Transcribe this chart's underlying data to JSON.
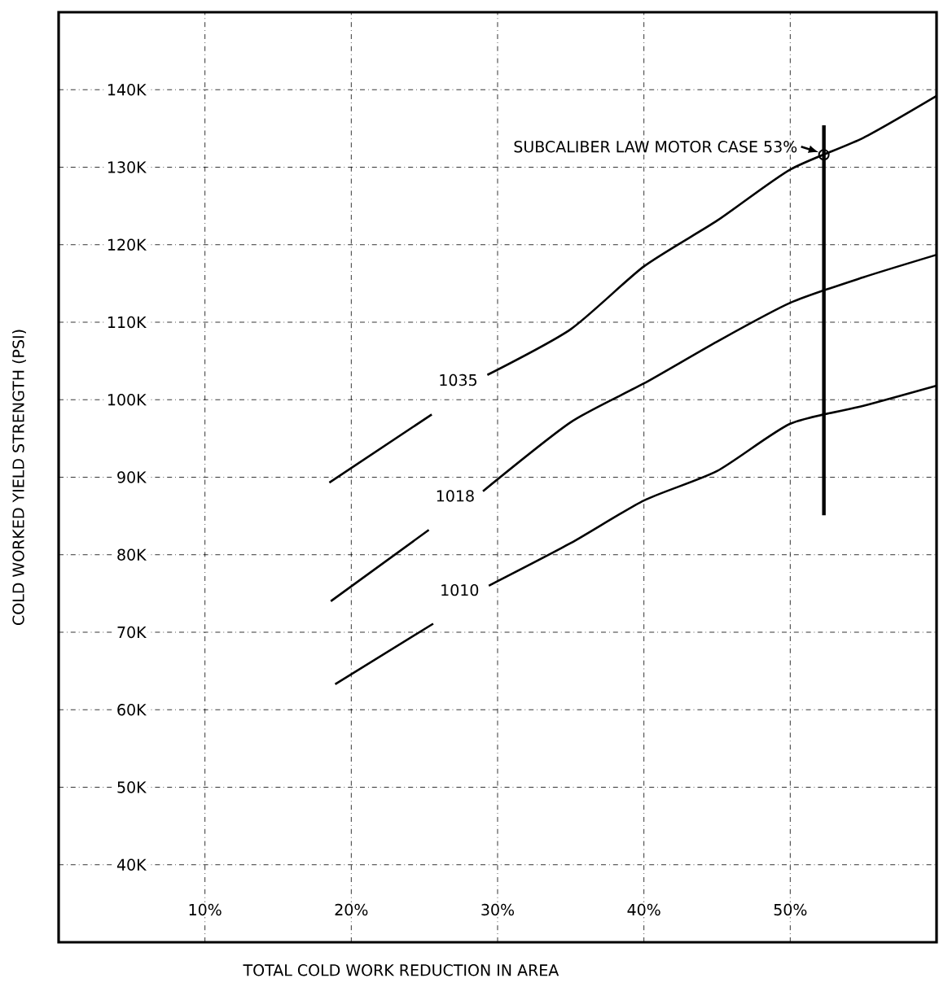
{
  "chart_data": {
    "type": "line",
    "xlabel": "TOTAL COLD WORK REDUCTION IN AREA",
    "ylabel": "COLD WORKED YIELD STRENGTH (PSI)",
    "xlim": [
      0,
      60
    ],
    "ylim": [
      30000,
      150000
    ],
    "xticks": [
      {
        "value": 10,
        "label": "10%"
      },
      {
        "value": 20,
        "label": "20%"
      },
      {
        "value": 30,
        "label": "30%"
      },
      {
        "value": 40,
        "label": "40%"
      },
      {
        "value": 50,
        "label": "50%"
      }
    ],
    "yticks": [
      {
        "value": 40000,
        "label": "40K"
      },
      {
        "value": 50000,
        "label": "50K"
      },
      {
        "value": 60000,
        "label": "60K"
      },
      {
        "value": 70000,
        "label": "70K"
      },
      {
        "value": 80000,
        "label": "80K"
      },
      {
        "value": 90000,
        "label": "90K"
      },
      {
        "value": 100000,
        "label": "100K"
      },
      {
        "value": 110000,
        "label": "110K"
      },
      {
        "value": 120000,
        "label": "120K"
      },
      {
        "value": 130000,
        "label": "130K"
      },
      {
        "value": 140000,
        "label": "140K"
      }
    ],
    "grid": true,
    "line_style": "solid",
    "marker": "none",
    "series": [
      {
        "name": "1035",
        "color": "#000000",
        "x": [
          18.5,
          25.5,
          27.3,
          29.3,
          35,
          40,
          45,
          50,
          55,
          60
        ],
        "values": [
          89300,
          98100,
          null,
          103200,
          109100,
          117200,
          123100,
          129700,
          133800,
          139200
        ]
      },
      {
        "name": "1018",
        "color": "#000000",
        "x": [
          18.6,
          25.3,
          27.1,
          29,
          35,
          40,
          45,
          50,
          55,
          60
        ],
        "values": [
          74000,
          83200,
          null,
          88200,
          97100,
          102100,
          107500,
          112500,
          115800,
          118700
        ]
      },
      {
        "name": "1010",
        "color": "#000000",
        "x": [
          18.9,
          25.6,
          27.4,
          29.4,
          35,
          40,
          45,
          50,
          55,
          60
        ],
        "values": [
          63300,
          71100,
          null,
          76000,
          81500,
          87000,
          90800,
          96900,
          99200,
          101800
        ]
      },
      {
        "type": "line",
        "color": "#000000",
        "x": [
          52.3,
          52.3
        ],
        "values": [
          135400,
          85100
        ]
      },
      {
        "type": "scatter",
        "color": "#000000",
        "marker": "circle",
        "x": [
          52.3
        ],
        "values": [
          131600
        ]
      }
    ],
    "annotations": [
      {
        "text": "SUBCALIBER LAW MOTOR CASE 53%",
        "x": 52.3,
        "y": 131600
      }
    ]
  }
}
